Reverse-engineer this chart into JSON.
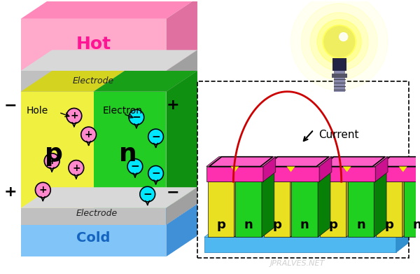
{
  "bg_color": "#ffffff",
  "left_block": {
    "hot_label": "Hot",
    "hot_label_color": "#ff1493",
    "cold_label": "Cold",
    "cold_label_color": "#1565c0",
    "electrode_label": "Electrode",
    "p_label": "p",
    "n_label": "n",
    "hole_label": "Hole",
    "electron_label": "Electron"
  },
  "right_block": {
    "p_label": "p",
    "n_label": "n",
    "current_label": "Current",
    "wire_color": "#cc0000"
  },
  "watermark": "JPRALVES.NET",
  "watermark_color": "#bbbbbb"
}
